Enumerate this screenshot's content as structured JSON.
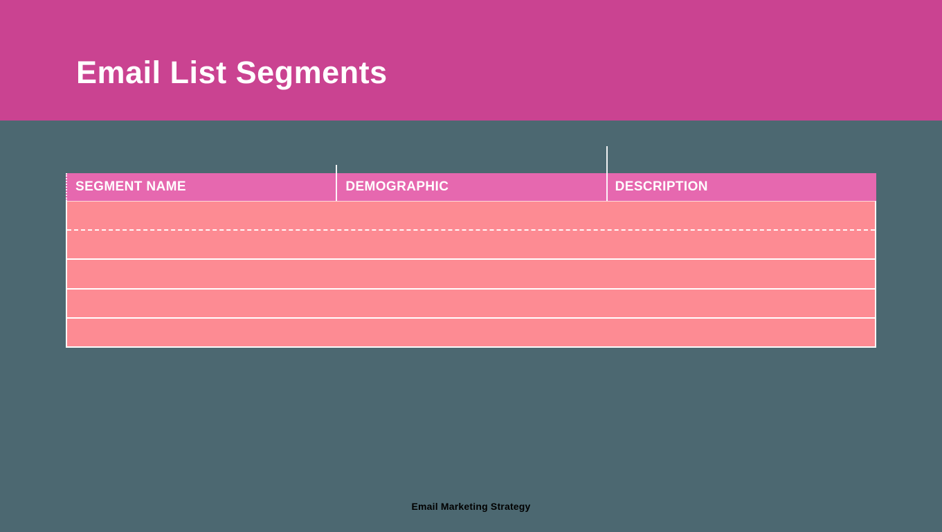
{
  "slide": {
    "title": "Email List Segments",
    "footer_text": "Email Marketing Strategy"
  },
  "table": {
    "headers": [
      {
        "label": "SEGMENT NAME"
      },
      {
        "label": "DEMOGRAPHIC"
      },
      {
        "label": "DESCRIPTION"
      }
    ],
    "row_count": 5,
    "rows": [
      {
        "segment_name": "",
        "demographic": "",
        "description": ""
      },
      {
        "segment_name": "",
        "demographic": "",
        "description": ""
      },
      {
        "segment_name": "",
        "demographic": "",
        "description": ""
      },
      {
        "segment_name": "",
        "demographic": "",
        "description": ""
      },
      {
        "segment_name": "",
        "demographic": "",
        "description": ""
      }
    ]
  },
  "colors": {
    "banner": "#ca4391",
    "background": "#4c6871",
    "table_header": "#e668af",
    "table_row": "#fd8b93",
    "title_text": "#ffffff",
    "header_text": "#ffffff",
    "footer_text": "#000000",
    "separator": "#ffffff"
  }
}
